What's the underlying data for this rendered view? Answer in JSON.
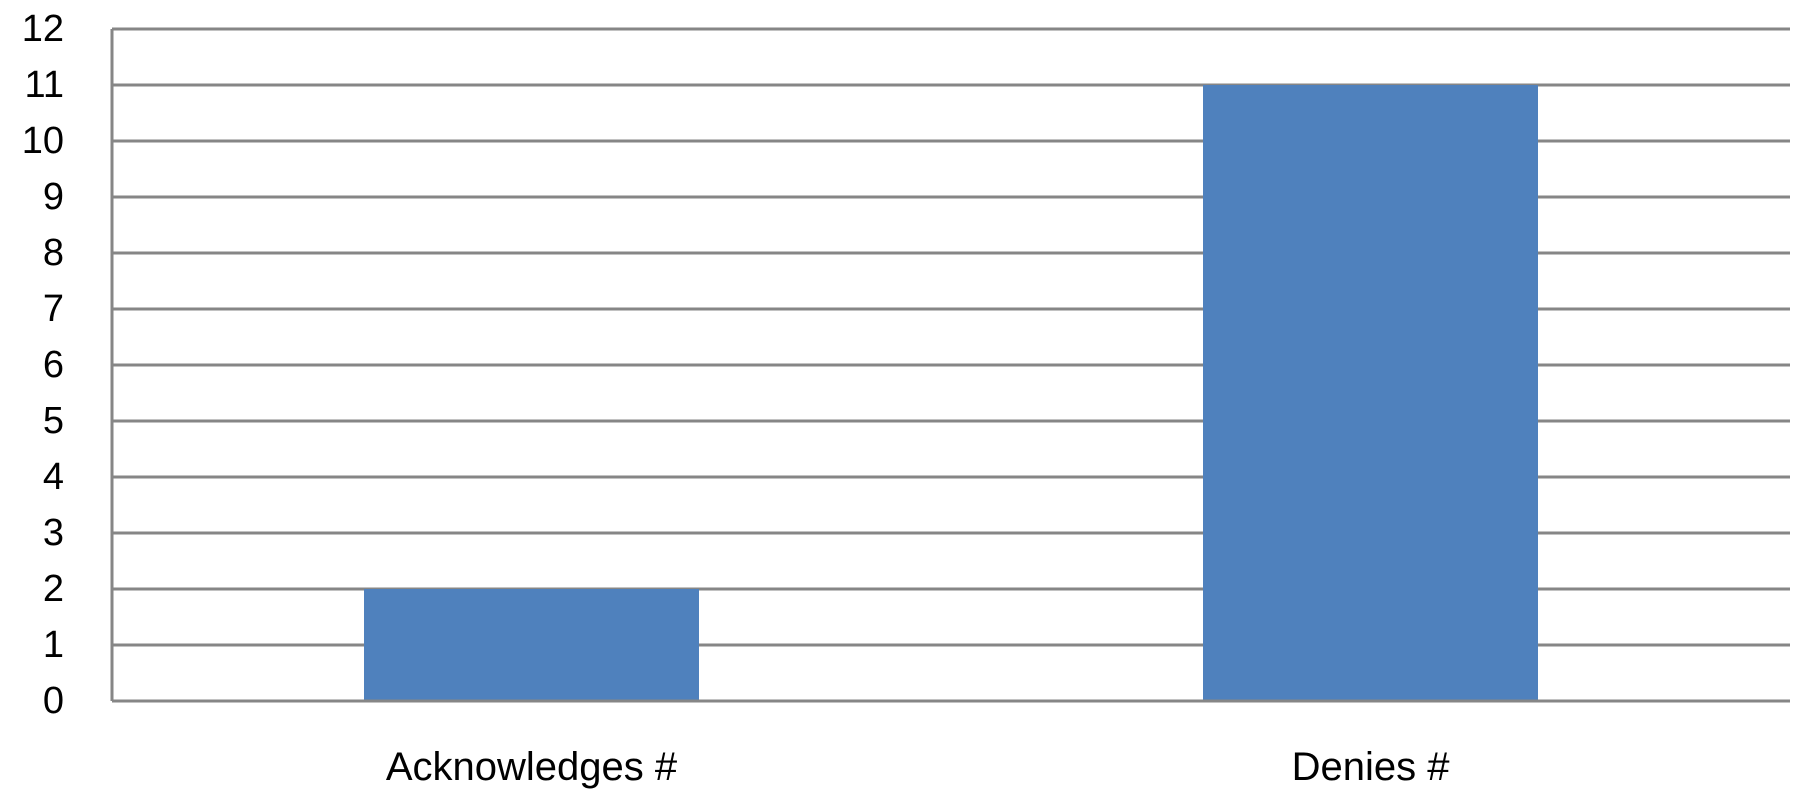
{
  "chart_data": {
    "type": "bar",
    "title": "",
    "xlabel": "",
    "ylabel": "",
    "categories": [
      "Acknowledges #",
      "Denies #"
    ],
    "values": [
      2,
      11
    ],
    "ylim": [
      0,
      12
    ],
    "yticks": [
      0,
      1,
      2,
      3,
      4,
      5,
      6,
      7,
      8,
      9,
      10,
      11,
      12
    ],
    "grid": true,
    "legend": "none",
    "colors": {
      "bar": "#4f81bd",
      "grid": "#868686",
      "axis": "#868686"
    }
  }
}
